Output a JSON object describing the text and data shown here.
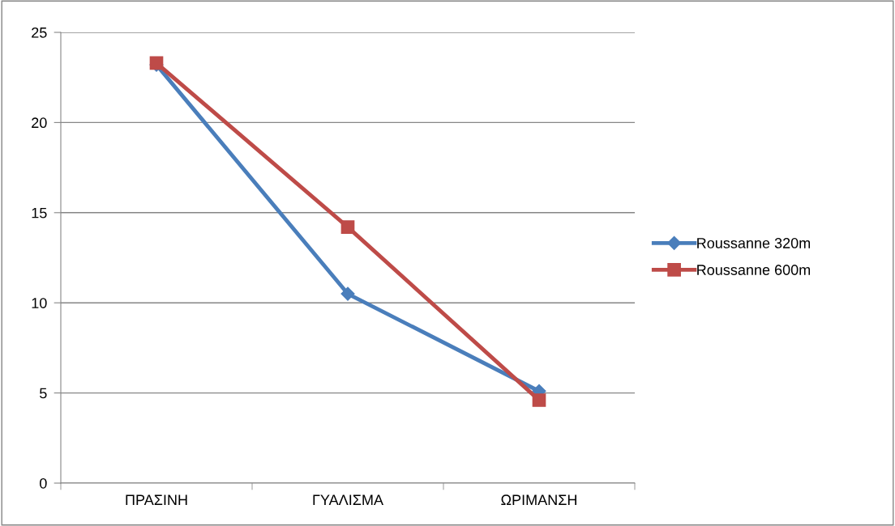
{
  "chart_data": {
    "type": "line",
    "categories": [
      "ΠΡΑΣΙΝΗ",
      "ΓΥΑΛΙΣΜΑ",
      "ΩΡΙΜΑΝΣΗ"
    ],
    "series": [
      {
        "name": "Roussanne 320m",
        "color": "#4a7ebb",
        "marker": "diamond",
        "values": [
          23.2,
          10.5,
          5.1
        ]
      },
      {
        "name": "Roussanne 600m",
        "color": "#be4b48",
        "marker": "square",
        "values": [
          23.3,
          14.2,
          4.6
        ]
      }
    ],
    "ylim": [
      0,
      25
    ],
    "yticks": [
      0,
      5,
      10,
      15,
      20,
      25
    ],
    "grid": "y",
    "legend": "right",
    "line_style": "solid"
  }
}
